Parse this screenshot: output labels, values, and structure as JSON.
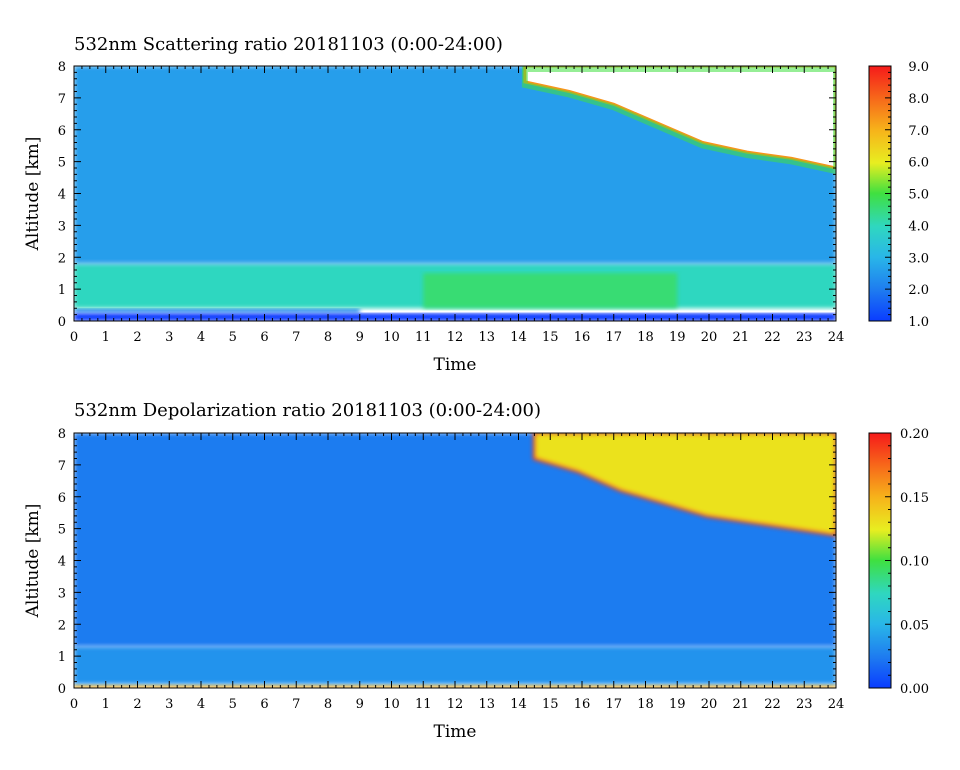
{
  "chart_data": [
    {
      "type": "heatmap",
      "title": "532nm Scattering ratio  20181103 (0:00-24:00)",
      "xlabel": "Time",
      "ylabel": "Altitude [km]",
      "xlim": [
        0,
        24
      ],
      "ylim": [
        0,
        8
      ],
      "x_ticks": [
        "0",
        "1",
        "2",
        "3",
        "4",
        "5",
        "6",
        "7",
        "8",
        "9",
        "10",
        "11",
        "12",
        "13",
        "14",
        "15",
        "16",
        "17",
        "18",
        "19",
        "20",
        "21",
        "22",
        "23",
        "24"
      ],
      "y_ticks": [
        "0",
        "1",
        "2",
        "3",
        "4",
        "5",
        "6",
        "7",
        "8"
      ],
      "colorbar": {
        "range": [
          1.0,
          9.0
        ],
        "labels": [
          "1.0",
          "2.0",
          "3.0",
          "4.0",
          "5.0",
          "6.0",
          "7.0",
          "8.0",
          "9.0"
        ]
      },
      "layers": [
        {
          "t": [
            0,
            24
          ],
          "alt": [
            0.0,
            0.25
          ],
          "value": 1.0
        },
        {
          "t": [
            0,
            9
          ],
          "alt": [
            0.25,
            0.4
          ],
          "value": 2.0
        },
        {
          "t": [
            0,
            24
          ],
          "alt": [
            0.4,
            1.8
          ],
          "value": 4.0
        },
        {
          "t": [
            11,
            19
          ],
          "alt": [
            0.4,
            1.5
          ],
          "value": 4.6
        },
        {
          "t": [
            0,
            24
          ],
          "alt": [
            1.8,
            8.0
          ],
          "value": 2.6
        }
      ],
      "cloud_region": {
        "t_start": 14.2,
        "t_end": 24,
        "base_km": [
          7.5,
          7.2,
          6.8,
          6.2,
          5.6,
          5.3,
          5.1,
          4.8
        ],
        "top_km": 8.0,
        "note": "saturated"
      }
    },
    {
      "type": "heatmap",
      "title": "532nm Depolarization ratio  20181103 (0:00-24:00)",
      "xlabel": "Time",
      "ylabel": "Altitude [km]",
      "xlim": [
        0,
        24
      ],
      "ylim": [
        0,
        8
      ],
      "x_ticks": [
        "0",
        "1",
        "2",
        "3",
        "4",
        "5",
        "6",
        "7",
        "8",
        "9",
        "10",
        "11",
        "12",
        "13",
        "14",
        "15",
        "16",
        "17",
        "18",
        "19",
        "20",
        "21",
        "22",
        "23",
        "24"
      ],
      "y_ticks": [
        "0",
        "1",
        "2",
        "3",
        "4",
        "5",
        "6",
        "7",
        "8"
      ],
      "colorbar": {
        "range": [
          0.0,
          0.2
        ],
        "labels": [
          "0.00",
          "0.05",
          "0.10",
          "0.15",
          "0.20"
        ]
      },
      "layers": [
        {
          "t": [
            0,
            24
          ],
          "alt": [
            0.0,
            0.12
          ],
          "value": 0.15
        },
        {
          "t": [
            0,
            24
          ],
          "alt": [
            0.12,
            1.3
          ],
          "value": 0.035
        },
        {
          "t": [
            0,
            24
          ],
          "alt": [
            1.3,
            8.0
          ],
          "value": 0.025
        }
      ],
      "cloud_region": {
        "t_start": 14.5,
        "t_end": 24,
        "base_km": [
          7.2,
          6.8,
          6.2,
          5.8,
          5.4,
          5.2,
          5.0,
          4.8
        ],
        "top_km": 8.0,
        "value": 0.13
      }
    }
  ]
}
